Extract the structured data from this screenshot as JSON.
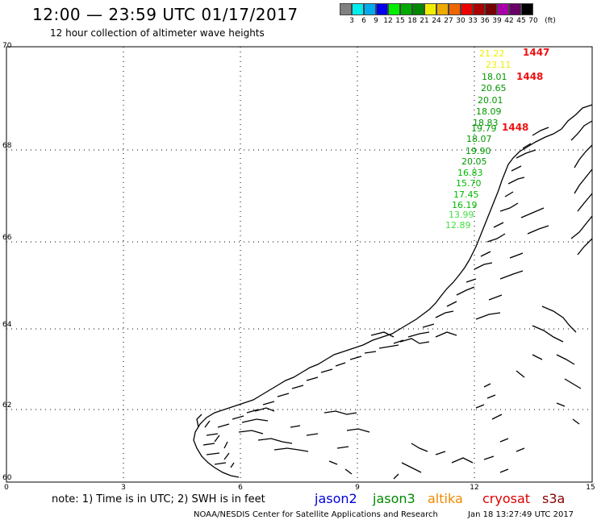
{
  "header": {
    "title": "12:00 — 23:59 UTC 01/17/2017",
    "subtitle": "12 hour collection of altimeter wave heights"
  },
  "legend": {
    "colors": [
      "#808080",
      "#00eeee",
      "#00aaee",
      "#0000ee",
      "#00ee00",
      "#00aa00",
      "#008800",
      "#eeee00",
      "#eeaa00",
      "#ee6600",
      "#ee0000",
      "#aa0000",
      "#770000",
      "#aa00aa",
      "#660066",
      "#000000"
    ],
    "labels": [
      "3",
      "6",
      "9",
      "12",
      "15",
      "18",
      "21",
      "24",
      "27",
      "30",
      "33",
      "36",
      "39",
      "42",
      "45",
      "70",
      "(ft)"
    ]
  },
  "axes": {
    "lat_labels": [
      "70",
      "68",
      "66",
      "64",
      "62",
      "60"
    ],
    "lon_labels": [
      "0",
      "3",
      "6",
      "9",
      "12",
      "15"
    ]
  },
  "wave_heights": [
    {
      "value": "21.22",
      "color": "#eeee00"
    },
    {
      "value": "23.11",
      "color": "#eeee00"
    },
    {
      "value": "18.01",
      "color": "#009900"
    },
    {
      "value": "20.65",
      "color": "#009900"
    },
    {
      "value": "20.01",
      "color": "#009900"
    },
    {
      "value": "18.09",
      "color": "#009900"
    },
    {
      "value": "18.83",
      "color": "#009900"
    },
    {
      "value": "19.79",
      "color": "#009900"
    },
    {
      "value": "18.07",
      "color": "#009900"
    },
    {
      "value": "19.90",
      "color": "#009900"
    },
    {
      "value": "20.05",
      "color": "#009900"
    },
    {
      "value": "16.83",
      "color": "#00bb00"
    },
    {
      "value": "15.70",
      "color": "#00bb00"
    },
    {
      "value": "17.45",
      "color": "#00bb00"
    },
    {
      "value": "16.19",
      "color": "#00bb00"
    },
    {
      "value": "13.99",
      "color": "#44dd44"
    },
    {
      "value": "12.89",
      "color": "#44dd44"
    }
  ],
  "pass_times": [
    "1447",
    "1448",
    "1448"
  ],
  "footer": {
    "note": "note: 1) Time is in UTC; 2) SWH is in feet",
    "satellites": [
      {
        "name": "jason2",
        "color": "#0000dd"
      },
      {
        "name": "jason3",
        "color": "#008800"
      },
      {
        "name": "altika",
        "color": "#ee8800"
      },
      {
        "name": "cryosat",
        "color": "#dd0000"
      },
      {
        "name": "s3a",
        "color": "#880000"
      }
    ],
    "credit": "NOAA/NESDIS Center for Satellite Applications and Research",
    "timestamp": "Jan 18 13:27:49 UTC 2017"
  }
}
